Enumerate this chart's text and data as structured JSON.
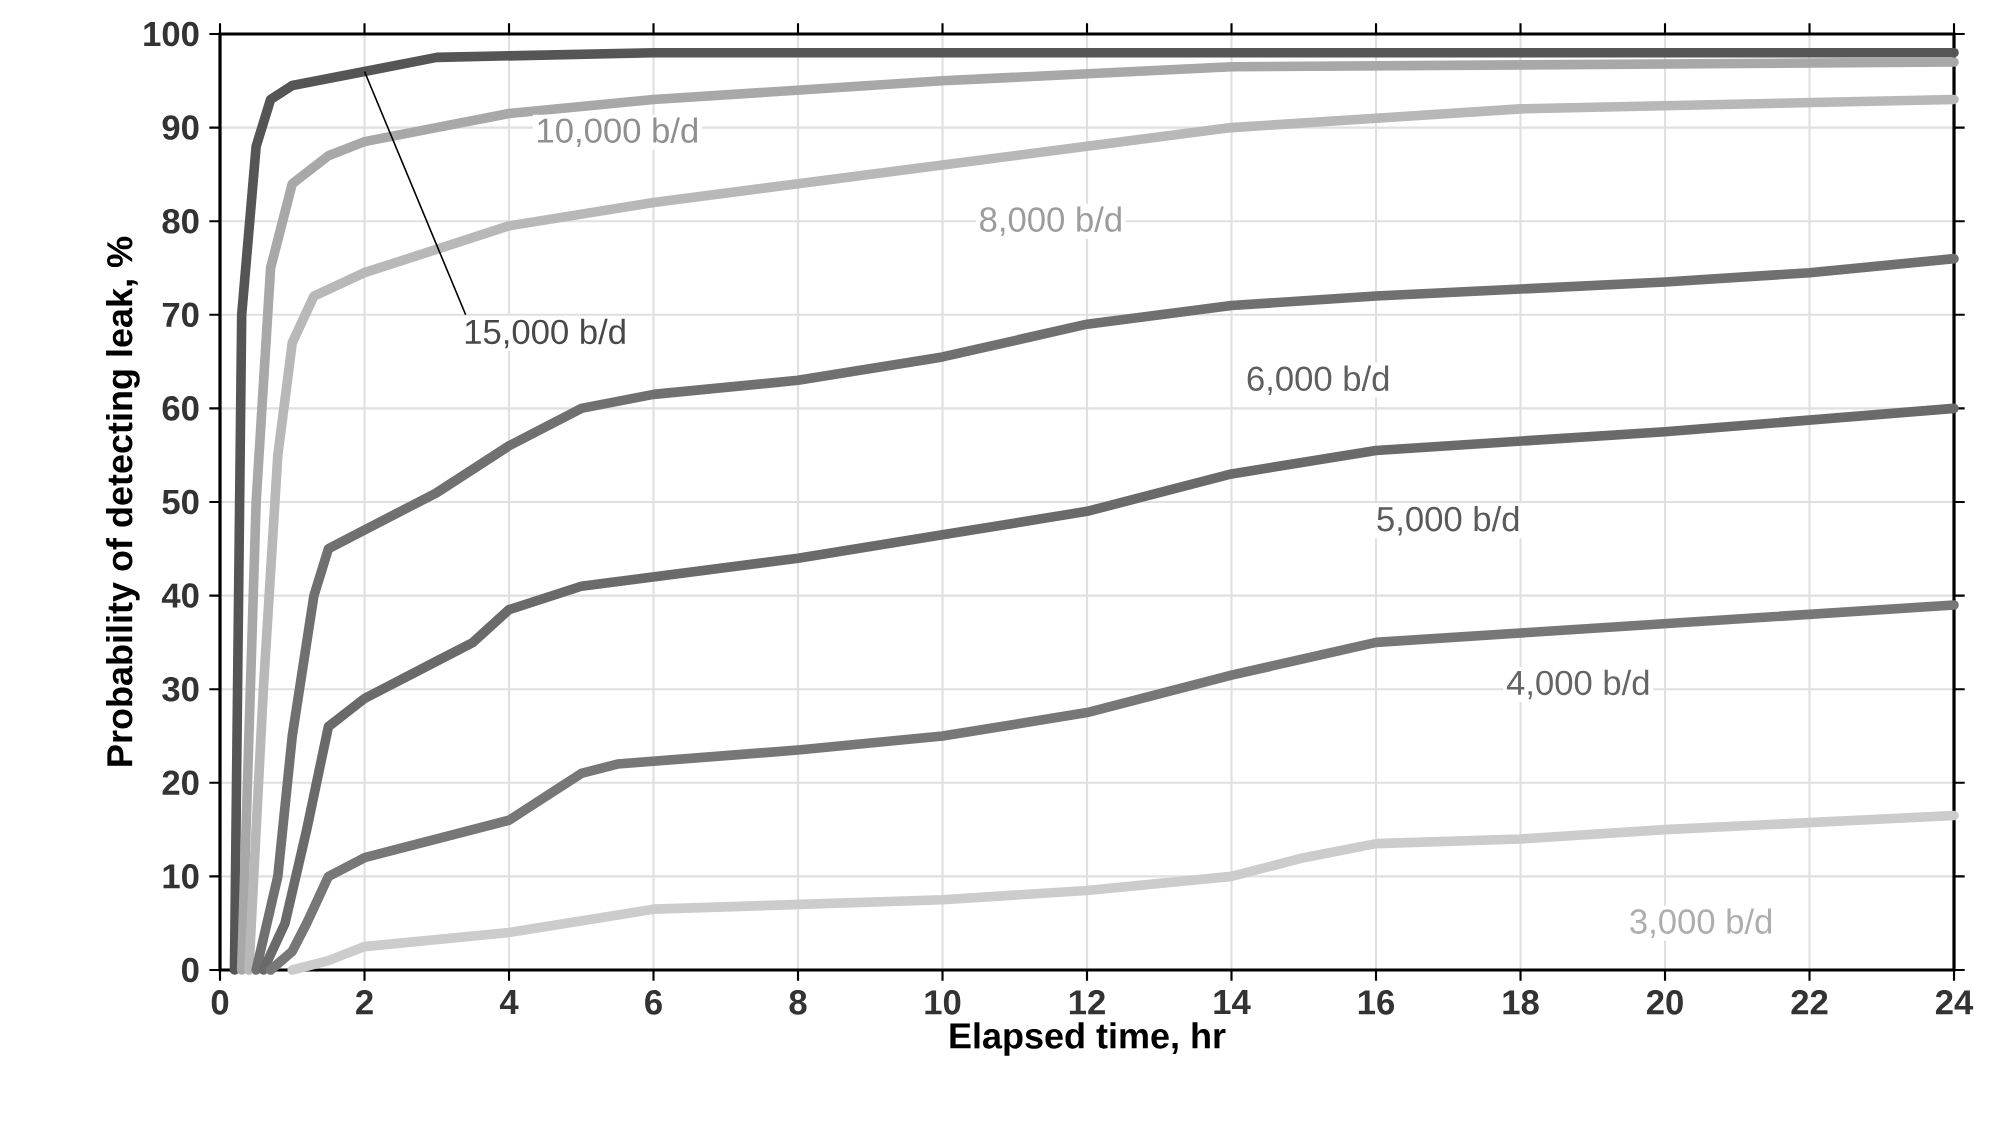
{
  "chart_data": {
    "type": "line",
    "xlabel": "Elapsed time, hr",
    "ylabel": "Probability of detecting leak, %",
    "xlim": [
      0,
      24
    ],
    "ylim": [
      0,
      100
    ],
    "xticks": [
      0,
      2,
      4,
      6,
      8,
      10,
      12,
      14,
      16,
      18,
      20,
      22,
      24
    ],
    "yticks": [
      0,
      10,
      20,
      30,
      40,
      50,
      60,
      70,
      80,
      90,
      100
    ],
    "grid": true,
    "line_style": "solid",
    "marker": "none",
    "series": [
      {
        "name": "15,000 b/d",
        "color": "#555555",
        "x": [
          0.2,
          0.3,
          0.5,
          0.7,
          1,
          2,
          3,
          6,
          24
        ],
        "values": [
          0,
          70,
          88,
          93,
          94.5,
          96,
          97.5,
          98,
          98
        ]
      },
      {
        "name": "10,000 b/d",
        "color": "#a8a8a8",
        "x": [
          0.3,
          0.5,
          0.7,
          1,
          1.5,
          2,
          4,
          6,
          10,
          14,
          24
        ],
        "values": [
          0,
          50,
          75,
          84,
          87,
          88.5,
          91.5,
          93,
          95,
          96.5,
          97
        ]
      },
      {
        "name": "8,000 b/d",
        "color": "#b8b8b8",
        "x": [
          0.4,
          0.6,
          0.8,
          1,
          1.3,
          2,
          4,
          6,
          8,
          10,
          12,
          14,
          16,
          18,
          24
        ],
        "values": [
          0,
          30,
          55,
          67,
          72,
          74.5,
          79.5,
          82,
          84,
          86,
          88,
          90,
          91,
          92,
          93
        ]
      },
      {
        "name": "6,000 b/d",
        "color": "#707070",
        "x": [
          0.5,
          0.8,
          1,
          1.3,
          1.5,
          2,
          3,
          4,
          5,
          6,
          8,
          10,
          12,
          14,
          16,
          20,
          22,
          24
        ],
        "values": [
          0,
          10,
          25,
          40,
          45,
          47,
          51,
          56,
          60,
          61.5,
          63,
          65.5,
          69,
          71,
          72,
          73.5,
          74.5,
          76
        ]
      },
      {
        "name": "5,000 b/d",
        "color": "#6a6a6a",
        "x": [
          0.6,
          0.9,
          1.2,
          1.5,
          2,
          3,
          3.5,
          4,
          5,
          6,
          8,
          10,
          12,
          14,
          16,
          20,
          24
        ],
        "values": [
          0,
          5,
          15,
          26,
          29,
          33,
          35,
          38.5,
          41,
          42,
          44,
          46.5,
          49,
          53,
          55.5,
          57.5,
          60
        ]
      },
      {
        "name": "4,000 b/d",
        "color": "#777777",
        "x": [
          0.7,
          1,
          1.2,
          1.5,
          2,
          4,
          5,
          5.5,
          8,
          10,
          12,
          14,
          16,
          18,
          24
        ],
        "values": [
          0,
          2,
          5,
          10,
          12,
          16,
          21,
          22,
          23.5,
          25,
          27.5,
          31.5,
          35,
          36,
          39
        ]
      },
      {
        "name": "3,000 b/d",
        "color": "#cccccc",
        "x": [
          1,
          1.5,
          2,
          4,
          6,
          10,
          12,
          14,
          15,
          16,
          18,
          20,
          24
        ],
        "values": [
          0,
          1,
          2.5,
          4,
          6.5,
          7.5,
          8.5,
          10,
          12,
          13.5,
          14,
          15,
          16.5
        ]
      }
    ]
  }
}
